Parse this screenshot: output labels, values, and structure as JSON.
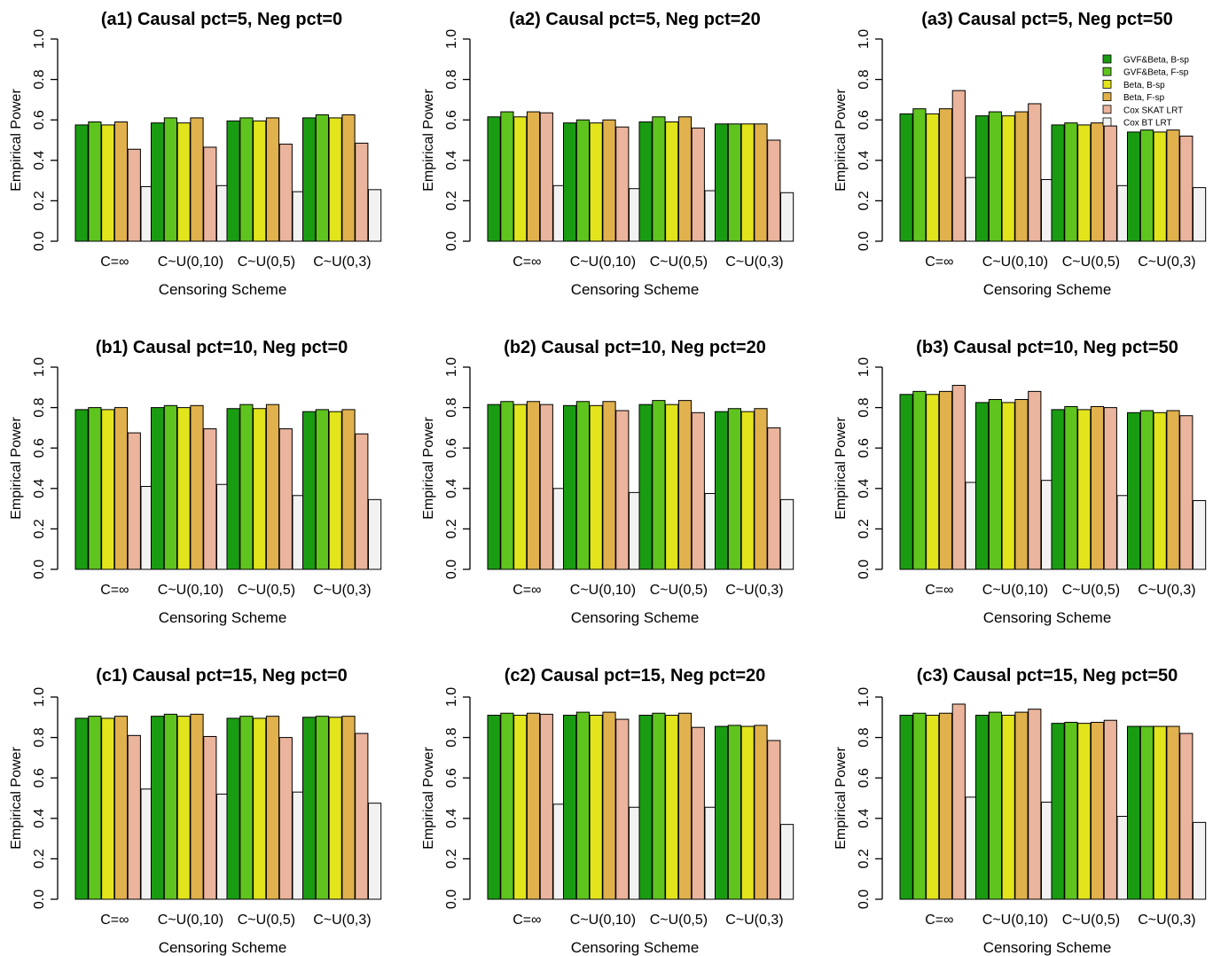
{
  "legend": {
    "entries": [
      "GVF&Beta, B-sp",
      "GVF&Beta, F-sp",
      "Beta, B-sp",
      "Beta, F-sp",
      "Cox SKAT LRT",
      "Cox BT LRT"
    ],
    "colors": [
      "#1a9c12",
      "#5fc41e",
      "#e2e41c",
      "#e0b14c",
      "#ebb49c",
      "#f2f2f2"
    ],
    "placement": "top-right of panel (a3)"
  },
  "chart_data": [
    {
      "type": "bar",
      "title": "(a1) Causal pct=5, Neg pct=0",
      "xlabel": "Censoring Scheme",
      "ylabel": "Empirical Power",
      "ylim": [
        0,
        1
      ],
      "yticks": [
        "0.0",
        "0.2",
        "0.4",
        "0.6",
        "0.8",
        "1.0"
      ],
      "grid": false,
      "categories": [
        "C=∞",
        "C~U(0,10)",
        "C~U(0,5)",
        "C~U(0,3)"
      ],
      "series": [
        {
          "name": "GVF&Beta, B-sp",
          "values": [
            0.575,
            0.585,
            0.595,
            0.61
          ]
        },
        {
          "name": "GVF&Beta, F-sp",
          "values": [
            0.59,
            0.61,
            0.61,
            0.625
          ]
        },
        {
          "name": "Beta, B-sp",
          "values": [
            0.575,
            0.585,
            0.595,
            0.61
          ]
        },
        {
          "name": "Beta, F-sp",
          "values": [
            0.59,
            0.61,
            0.61,
            0.625
          ]
        },
        {
          "name": "Cox SKAT LRT",
          "values": [
            0.455,
            0.465,
            0.48,
            0.485
          ]
        },
        {
          "name": "Cox BT LRT",
          "values": [
            0.27,
            0.275,
            0.245,
            0.255
          ]
        }
      ]
    },
    {
      "type": "bar",
      "title": "(a2) Causal pct=5, Neg pct=20",
      "xlabel": "Censoring Scheme",
      "ylabel": "Empirical Power",
      "ylim": [
        0,
        1
      ],
      "yticks": [
        "0.0",
        "0.2",
        "0.4",
        "0.6",
        "0.8",
        "1.0"
      ],
      "grid": false,
      "categories": [
        "C=∞",
        "C~U(0,10)",
        "C~U(0,5)",
        "C~U(0,3)"
      ],
      "series": [
        {
          "name": "GVF&Beta, B-sp",
          "values": [
            0.615,
            0.585,
            0.59,
            0.58
          ]
        },
        {
          "name": "GVF&Beta, F-sp",
          "values": [
            0.64,
            0.6,
            0.615,
            0.58
          ]
        },
        {
          "name": "Beta, B-sp",
          "values": [
            0.615,
            0.585,
            0.59,
            0.58
          ]
        },
        {
          "name": "Beta, F-sp",
          "values": [
            0.64,
            0.6,
            0.615,
            0.58
          ]
        },
        {
          "name": "Cox SKAT LRT",
          "values": [
            0.635,
            0.565,
            0.56,
            0.5
          ]
        },
        {
          "name": "Cox BT LRT",
          "values": [
            0.275,
            0.26,
            0.25,
            0.24
          ]
        }
      ]
    },
    {
      "type": "bar",
      "title": "(a3) Causal pct=5, Neg pct=50",
      "xlabel": "Censoring Scheme",
      "ylabel": "Empirical Power",
      "ylim": [
        0,
        1
      ],
      "yticks": [
        "0.0",
        "0.2",
        "0.4",
        "0.6",
        "0.8",
        "1.0"
      ],
      "grid": false,
      "categories": [
        "C=∞",
        "C~U(0,10)",
        "C~U(0,5)",
        "C~U(0,3)"
      ],
      "series": [
        {
          "name": "GVF&Beta, B-sp",
          "values": [
            0.63,
            0.62,
            0.575,
            0.54
          ]
        },
        {
          "name": "GVF&Beta, F-sp",
          "values": [
            0.655,
            0.64,
            0.585,
            0.55
          ]
        },
        {
          "name": "Beta, B-sp",
          "values": [
            0.63,
            0.62,
            0.575,
            0.54
          ]
        },
        {
          "name": "Beta, F-sp",
          "values": [
            0.655,
            0.64,
            0.585,
            0.55
          ]
        },
        {
          "name": "Cox SKAT LRT",
          "values": [
            0.745,
            0.68,
            0.57,
            0.52
          ]
        },
        {
          "name": "Cox BT LRT",
          "values": [
            0.315,
            0.305,
            0.275,
            0.265
          ]
        }
      ]
    },
    {
      "type": "bar",
      "title": "(b1) Causal pct=10, Neg pct=0",
      "xlabel": "Censoring Scheme",
      "ylabel": "Empirical Power",
      "ylim": [
        0,
        1
      ],
      "yticks": [
        "0.0",
        "0.2",
        "0.4",
        "0.6",
        "0.8",
        "1.0"
      ],
      "grid": false,
      "categories": [
        "C=∞",
        "C~U(0,10)",
        "C~U(0,5)",
        "C~U(0,3)"
      ],
      "series": [
        {
          "name": "GVF&Beta, B-sp",
          "values": [
            0.79,
            0.8,
            0.795,
            0.78
          ]
        },
        {
          "name": "GVF&Beta, F-sp",
          "values": [
            0.8,
            0.81,
            0.815,
            0.79
          ]
        },
        {
          "name": "Beta, B-sp",
          "values": [
            0.79,
            0.8,
            0.795,
            0.78
          ]
        },
        {
          "name": "Beta, F-sp",
          "values": [
            0.8,
            0.81,
            0.815,
            0.79
          ]
        },
        {
          "name": "Cox SKAT LRT",
          "values": [
            0.675,
            0.695,
            0.695,
            0.67
          ]
        },
        {
          "name": "Cox BT LRT",
          "values": [
            0.41,
            0.42,
            0.365,
            0.345
          ]
        }
      ]
    },
    {
      "type": "bar",
      "title": "(b2) Causal pct=10, Neg pct=20",
      "xlabel": "Censoring Scheme",
      "ylabel": "Empirical Power",
      "ylim": [
        0,
        1
      ],
      "yticks": [
        "0.0",
        "0.2",
        "0.4",
        "0.6",
        "0.8",
        "1.0"
      ],
      "grid": false,
      "categories": [
        "C=∞",
        "C~U(0,10)",
        "C~U(0,5)",
        "C~U(0,3)"
      ],
      "series": [
        {
          "name": "GVF&Beta, B-sp",
          "values": [
            0.815,
            0.81,
            0.815,
            0.78
          ]
        },
        {
          "name": "GVF&Beta, F-sp",
          "values": [
            0.83,
            0.83,
            0.835,
            0.795
          ]
        },
        {
          "name": "Beta, B-sp",
          "values": [
            0.815,
            0.81,
            0.815,
            0.78
          ]
        },
        {
          "name": "Beta, F-sp",
          "values": [
            0.83,
            0.83,
            0.835,
            0.795
          ]
        },
        {
          "name": "Cox SKAT LRT",
          "values": [
            0.815,
            0.785,
            0.775,
            0.7
          ]
        },
        {
          "name": "Cox BT LRT",
          "values": [
            0.4,
            0.38,
            0.375,
            0.345
          ]
        }
      ]
    },
    {
      "type": "bar",
      "title": "(b3) Causal pct=10, Neg pct=50",
      "xlabel": "Censoring Scheme",
      "ylabel": "Empirical Power",
      "ylim": [
        0,
        1
      ],
      "yticks": [
        "0.0",
        "0.2",
        "0.4",
        "0.6",
        "0.8",
        "1.0"
      ],
      "grid": false,
      "categories": [
        "C=∞",
        "C~U(0,10)",
        "C~U(0,5)",
        "C~U(0,3)"
      ],
      "series": [
        {
          "name": "GVF&Beta, B-sp",
          "values": [
            0.865,
            0.825,
            0.79,
            0.775
          ]
        },
        {
          "name": "GVF&Beta, F-sp",
          "values": [
            0.88,
            0.84,
            0.805,
            0.785
          ]
        },
        {
          "name": "Beta, B-sp",
          "values": [
            0.865,
            0.825,
            0.79,
            0.775
          ]
        },
        {
          "name": "Beta, F-sp",
          "values": [
            0.88,
            0.84,
            0.805,
            0.785
          ]
        },
        {
          "name": "Cox SKAT LRT",
          "values": [
            0.91,
            0.88,
            0.8,
            0.76
          ]
        },
        {
          "name": "Cox BT LRT",
          "values": [
            0.43,
            0.44,
            0.365,
            0.34
          ]
        }
      ]
    },
    {
      "type": "bar",
      "title": "(c1) Causal pct=15, Neg pct=0",
      "xlabel": "Censoring Scheme",
      "ylabel": "Empirical Power",
      "ylim": [
        0,
        1
      ],
      "yticks": [
        "0.0",
        "0.2",
        "0.4",
        "0.6",
        "0.8",
        "1.0"
      ],
      "grid": false,
      "categories": [
        "C=∞",
        "C~U(0,10)",
        "C~U(0,5)",
        "C~U(0,3)"
      ],
      "series": [
        {
          "name": "GVF&Beta, B-sp",
          "values": [
            0.895,
            0.905,
            0.895,
            0.9
          ]
        },
        {
          "name": "GVF&Beta, F-sp",
          "values": [
            0.905,
            0.915,
            0.905,
            0.905
          ]
        },
        {
          "name": "Beta, B-sp",
          "values": [
            0.895,
            0.905,
            0.895,
            0.9
          ]
        },
        {
          "name": "Beta, F-sp",
          "values": [
            0.905,
            0.915,
            0.905,
            0.905
          ]
        },
        {
          "name": "Cox SKAT LRT",
          "values": [
            0.81,
            0.805,
            0.8,
            0.82
          ]
        },
        {
          "name": "Cox BT LRT",
          "values": [
            0.545,
            0.52,
            0.53,
            0.475
          ]
        }
      ]
    },
    {
      "type": "bar",
      "title": "(c2) Causal pct=15, Neg pct=20",
      "xlabel": "Censoring Scheme",
      "ylabel": "Empirical Power",
      "ylim": [
        0,
        1
      ],
      "yticks": [
        "0.0",
        "0.2",
        "0.4",
        "0.6",
        "0.8",
        "1.0"
      ],
      "grid": false,
      "categories": [
        "C=∞",
        "C~U(0,10)",
        "C~U(0,5)",
        "C~U(0,3)"
      ],
      "series": [
        {
          "name": "GVF&Beta, B-sp",
          "values": [
            0.91,
            0.91,
            0.91,
            0.855
          ]
        },
        {
          "name": "GVF&Beta, F-sp",
          "values": [
            0.92,
            0.925,
            0.92,
            0.86
          ]
        },
        {
          "name": "Beta, B-sp",
          "values": [
            0.91,
            0.91,
            0.91,
            0.855
          ]
        },
        {
          "name": "Beta, F-sp",
          "values": [
            0.92,
            0.925,
            0.92,
            0.86
          ]
        },
        {
          "name": "Cox SKAT LRT",
          "values": [
            0.915,
            0.89,
            0.85,
            0.785
          ]
        },
        {
          "name": "Cox BT LRT",
          "values": [
            0.47,
            0.455,
            0.455,
            0.37
          ]
        }
      ]
    },
    {
      "type": "bar",
      "title": "(c3) Causal pct=15, Neg pct=50",
      "xlabel": "Censoring Scheme",
      "ylabel": "Empirical Power",
      "ylim": [
        0,
        1
      ],
      "yticks": [
        "0.0",
        "0.2",
        "0.4",
        "0.6",
        "0.8",
        "1.0"
      ],
      "grid": false,
      "categories": [
        "C=∞",
        "C~U(0,10)",
        "C~U(0,5)",
        "C~U(0,3)"
      ],
      "series": [
        {
          "name": "GVF&Beta, B-sp",
          "values": [
            0.91,
            0.91,
            0.87,
            0.855
          ]
        },
        {
          "name": "GVF&Beta, F-sp",
          "values": [
            0.92,
            0.925,
            0.875,
            0.855
          ]
        },
        {
          "name": "Beta, B-sp",
          "values": [
            0.91,
            0.91,
            0.87,
            0.855
          ]
        },
        {
          "name": "Beta, F-sp",
          "values": [
            0.92,
            0.925,
            0.875,
            0.855
          ]
        },
        {
          "name": "Cox SKAT LRT",
          "values": [
            0.965,
            0.94,
            0.885,
            0.82
          ]
        },
        {
          "name": "Cox BT LRT",
          "values": [
            0.505,
            0.48,
            0.41,
            0.38
          ]
        }
      ]
    }
  ]
}
